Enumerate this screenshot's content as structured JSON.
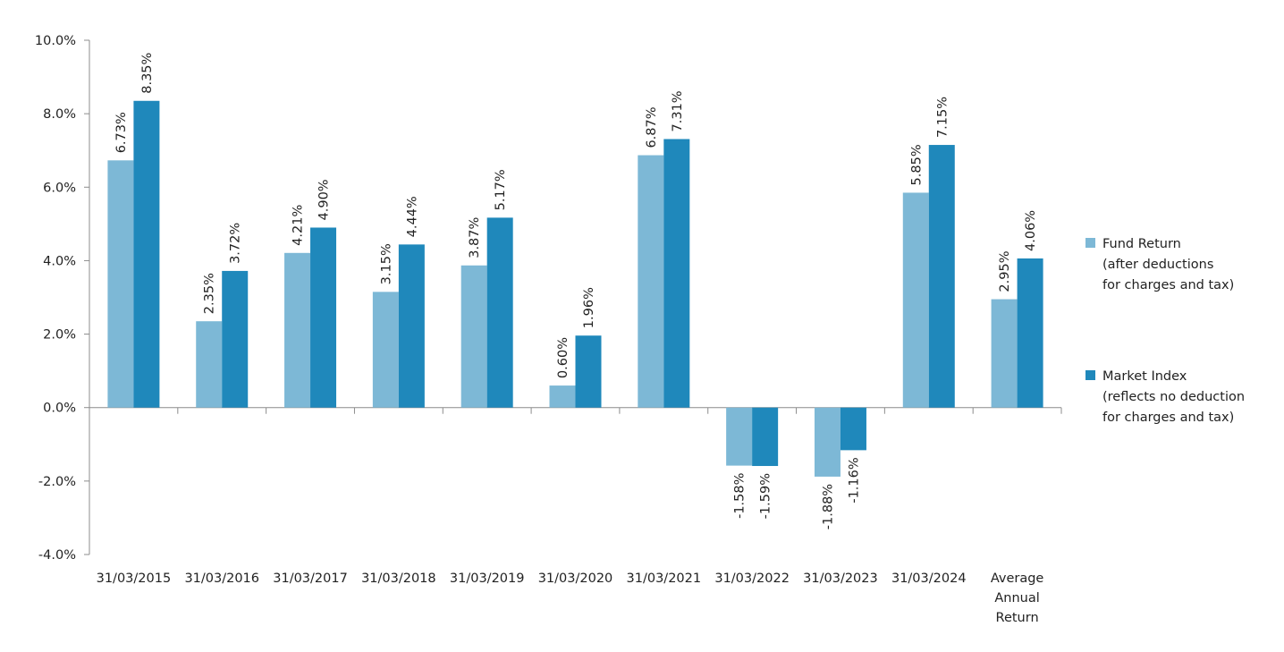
{
  "chart_data": {
    "type": "bar",
    "categories": [
      "31/03/2015",
      "31/03/2016",
      "31/03/2017",
      "31/03/2018",
      "31/03/2019",
      "31/03/2020",
      "31/03/2021",
      "31/03/2022",
      "31/03/2023",
      "31/03/2024",
      "Average Annual Return"
    ],
    "category_lines": [
      [
        "31/03/2015"
      ],
      [
        "31/03/2016"
      ],
      [
        "31/03/2017"
      ],
      [
        "31/03/2018"
      ],
      [
        "31/03/2019"
      ],
      [
        "31/03/2020"
      ],
      [
        "31/03/2021"
      ],
      [
        "31/03/2022"
      ],
      [
        "31/03/2023"
      ],
      [
        "31/03/2024"
      ],
      [
        "Average",
        "Annual",
        "Return"
      ]
    ],
    "series": [
      {
        "name": "Fund Return (after deductions for charges and tax)",
        "legend_lines": [
          "Fund Return",
          "(after deductions",
          "for charges and tax)"
        ],
        "color": "#7DB8D6",
        "values": [
          6.73,
          2.35,
          4.21,
          3.15,
          3.87,
          0.6,
          6.87,
          -1.58,
          -1.88,
          5.85,
          2.95
        ],
        "labels": [
          "6.73%",
          "2.35%",
          "4.21%",
          "3.15%",
          "3.87%",
          "0.60%",
          "6.87%",
          "-1.58%",
          "-1.88%",
          "5.85%",
          "2.95%"
        ]
      },
      {
        "name": "Market Index (reflects no deduction for charges and tax)",
        "legend_lines": [
          "Market Index",
          "(reflects no deduction",
          "for charges and tax)"
        ],
        "color": "#1F88BB",
        "values": [
          8.35,
          3.72,
          4.9,
          4.44,
          5.17,
          1.96,
          7.31,
          -1.59,
          -1.16,
          7.15,
          4.06
        ],
        "labels": [
          "8.35%",
          "3.72%",
          "4.90%",
          "4.44%",
          "5.17%",
          "1.96%",
          "7.31%",
          "-1.59%",
          "-1.16%",
          "7.15%",
          "4.06%"
        ]
      }
    ],
    "ylim": [
      -4,
      10
    ],
    "yticks": [
      10,
      8,
      6,
      4,
      2,
      0,
      -2,
      -4
    ],
    "ytick_labels": [
      "10.0%",
      "8.0%",
      "6.0%",
      "4.0%",
      "2.0%",
      "0.0%",
      "-2.0%",
      "-4.0%"
    ],
    "grid": false,
    "legend_position": "right",
    "title": "",
    "xlabel": "",
    "ylabel": ""
  }
}
